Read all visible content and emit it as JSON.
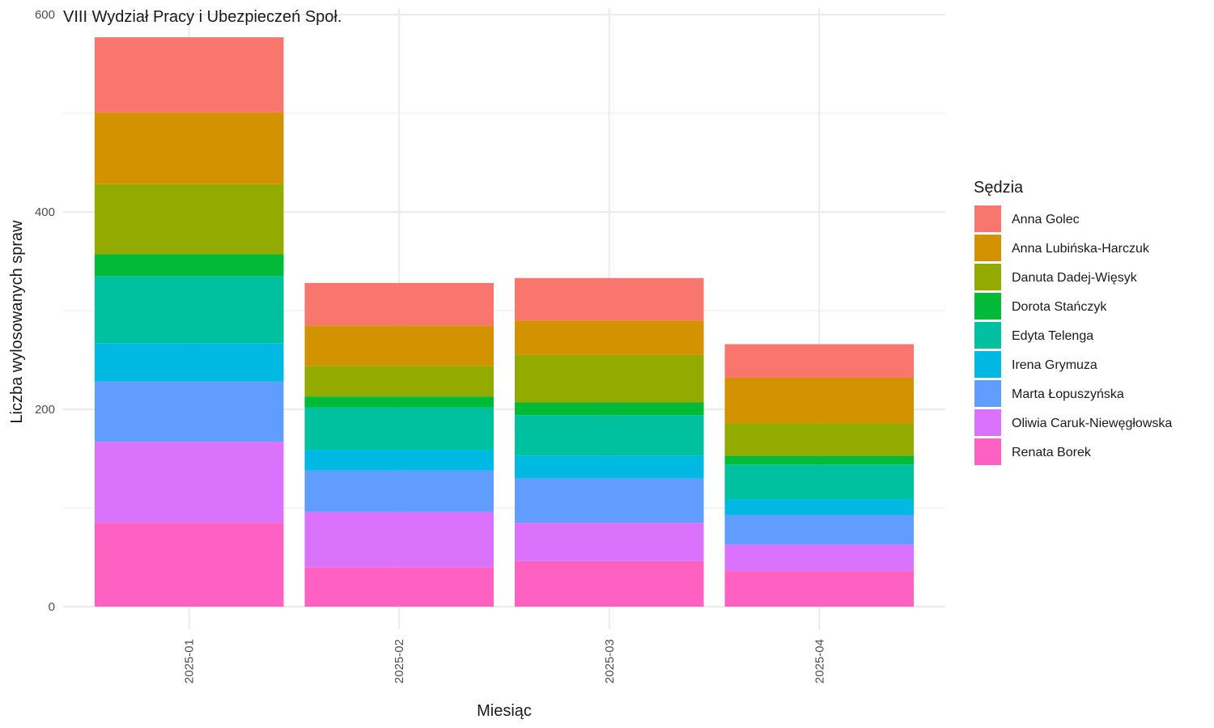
{
  "chart_data": {
    "type": "bar",
    "stacked": true,
    "title": "VIII Wydział Pracy i Ubezpieczeń Społ.",
    "xlabel": "Miesiąc",
    "ylabel": "Liczba wylosowanych spraw",
    "ylim": [
      0,
      600
    ],
    "yticks": [
      0,
      200,
      400,
      600
    ],
    "grid": true,
    "legend_title": "Sędzia",
    "legend_position": "right",
    "categories": [
      "2025-01",
      "2025-02",
      "2025-03",
      "2025-04"
    ],
    "series": [
      {
        "name": "Renata Borek",
        "color": "#FF61C3",
        "values": [
          85,
          40,
          46,
          36
        ]
      },
      {
        "name": "Oliwia Caruk-Niewęgłowska",
        "color": "#DB72FB",
        "values": [
          82,
          56,
          39,
          27
        ]
      },
      {
        "name": "Marta Łopuszyńska",
        "color": "#619CFF",
        "values": [
          61,
          42,
          45,
          30
        ]
      },
      {
        "name": "Irena Grymuza",
        "color": "#00B9E3",
        "values": [
          39,
          21,
          23,
          16
        ]
      },
      {
        "name": "Edyta Telenga",
        "color": "#00C19F",
        "values": [
          68,
          43,
          41,
          35
        ]
      },
      {
        "name": "Dorota Stańczyk",
        "color": "#00BA38",
        "values": [
          22,
          11,
          13,
          9
        ]
      },
      {
        "name": "Danuta Dadej-Więsyk",
        "color": "#93AA00",
        "values": [
          71,
          31,
          48,
          33
        ]
      },
      {
        "name": "Anna Lubińska-Harczuk",
        "color": "#D39200",
        "values": [
          73,
          41,
          35,
          46
        ]
      },
      {
        "name": "Anna Golec",
        "color": "#F8766D",
        "values": [
          76,
          43,
          43,
          34
        ]
      }
    ]
  }
}
